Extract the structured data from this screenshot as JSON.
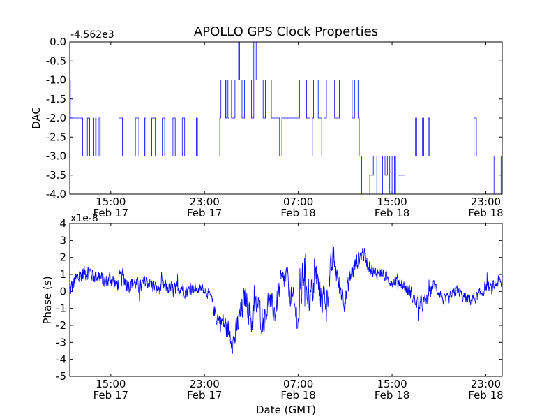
{
  "title": "APOLLO GPS Clock Properties",
  "chart_data": [
    {
      "type": "line",
      "ylabel": "DAC",
      "xlabel": "",
      "offset_label": "-4.562e3",
      "ylim": [
        -4.0,
        0.0
      ],
      "xlim_hours": [
        11.5,
        48.4
      ],
      "yticks": [
        {
          "v": 0.0,
          "label": "0.0"
        },
        {
          "v": -0.5,
          "label": "-0.5"
        },
        {
          "v": -1.0,
          "label": "-1.0"
        },
        {
          "v": -1.5,
          "label": "-1.5"
        },
        {
          "v": -2.0,
          "label": "-2.0"
        },
        {
          "v": -2.5,
          "label": "-2.5"
        },
        {
          "v": -3.0,
          "label": "-3.0"
        },
        {
          "v": -3.5,
          "label": "-3.5"
        },
        {
          "v": -4.0,
          "label": "-4.0"
        }
      ],
      "xticks": [
        {
          "h": 15,
          "time": "15:00",
          "date": "Feb 17"
        },
        {
          "h": 23,
          "time": "23:00",
          "date": "Feb 17"
        },
        {
          "h": 31,
          "time": "07:00",
          "date": "Feb 18"
        },
        {
          "h": 39,
          "time": "15:00",
          "date": "Feb 18"
        },
        {
          "h": 47,
          "time": "23:00",
          "date": "Feb 18"
        }
      ],
      "color": "#0000ff",
      "series_name": "DAC",
      "steps": [
        [
          11.5,
          -1.0
        ],
        [
          11.55,
          -2.0
        ],
        [
          12.6,
          -3.0
        ],
        [
          13.0,
          -2.0
        ],
        [
          13.2,
          -3.0
        ],
        [
          13.5,
          -2.0
        ],
        [
          13.55,
          -3.0
        ],
        [
          13.7,
          -2.0
        ],
        [
          13.75,
          -3.0
        ],
        [
          14.0,
          -2.0
        ],
        [
          14.1,
          -3.0
        ],
        [
          15.7,
          -2.0
        ],
        [
          16.0,
          -3.0
        ],
        [
          17.1,
          -2.0
        ],
        [
          17.4,
          -3.0
        ],
        [
          17.9,
          -2.0
        ],
        [
          18.0,
          -3.0
        ],
        [
          18.5,
          -2.0
        ],
        [
          18.8,
          -3.0
        ],
        [
          19.4,
          -2.0
        ],
        [
          19.6,
          -3.0
        ],
        [
          20.3,
          -2.0
        ],
        [
          20.5,
          -3.0
        ],
        [
          21.1,
          -2.0
        ],
        [
          21.3,
          -3.0
        ],
        [
          22.3,
          -2.0
        ],
        [
          22.4,
          -3.0
        ],
        [
          24.3,
          -2.0
        ],
        [
          24.4,
          -1.0
        ],
        [
          24.8,
          -2.0
        ],
        [
          24.9,
          -1.0
        ],
        [
          25.0,
          -2.0
        ],
        [
          25.1,
          -1.0
        ],
        [
          25.3,
          -2.0
        ],
        [
          25.6,
          -1.0
        ],
        [
          25.9,
          0.0
        ],
        [
          26.0,
          -1.0
        ],
        [
          26.2,
          -2.0
        ],
        [
          26.4,
          -1.0
        ],
        [
          27.0,
          -2.0
        ],
        [
          27.2,
          0.0
        ],
        [
          27.4,
          -1.0
        ],
        [
          28.0,
          -2.0
        ],
        [
          28.2,
          -1.0
        ],
        [
          28.7,
          -2.0
        ],
        [
          29.4,
          -3.0
        ],
        [
          29.6,
          -2.0
        ],
        [
          31.1,
          -1.0
        ],
        [
          31.7,
          -2.0
        ],
        [
          32.0,
          -3.0
        ],
        [
          32.2,
          -2.0
        ],
        [
          32.3,
          -1.0
        ],
        [
          32.7,
          -2.0
        ],
        [
          33.0,
          -3.0
        ],
        [
          33.2,
          -2.0
        ],
        [
          33.4,
          -1.0
        ],
        [
          34.1,
          -2.0
        ],
        [
          34.5,
          -1.0
        ],
        [
          35.6,
          -2.0
        ],
        [
          35.8,
          -1.0
        ],
        [
          36.1,
          -2.0
        ],
        [
          36.2,
          -3.0
        ],
        [
          36.4,
          -4.0
        ],
        [
          37.1,
          -3.5
        ],
        [
          37.4,
          -3.0
        ],
        [
          37.7,
          -4.0
        ],
        [
          38.2,
          -3.0
        ],
        [
          38.4,
          -3.5
        ],
        [
          38.6,
          -3.0
        ],
        [
          38.8,
          -4.0
        ],
        [
          39.0,
          -3.0
        ],
        [
          39.2,
          -4.0
        ],
        [
          39.3,
          -3.0
        ],
        [
          39.5,
          -3.5
        ],
        [
          40.1,
          -3.0
        ],
        [
          41.0,
          -2.0
        ],
        [
          41.1,
          -3.0
        ],
        [
          41.6,
          -2.0
        ],
        [
          41.7,
          -3.0
        ],
        [
          42.1,
          -2.0
        ],
        [
          42.2,
          -3.0
        ],
        [
          46.0,
          -2.0
        ],
        [
          46.2,
          -3.0
        ],
        [
          47.7,
          -4.0
        ],
        [
          48.3,
          -3.0
        ],
        [
          48.4,
          -3.0
        ]
      ]
    },
    {
      "type": "line",
      "ylabel": "Phase (s)",
      "xlabel": "Date (GMT)",
      "offset_label": "x1e-8",
      "ylim": [
        -5,
        4
      ],
      "xlim_hours": [
        11.5,
        48.4
      ],
      "yticks": [
        {
          "v": 4,
          "label": "4"
        },
        {
          "v": 3,
          "label": "3"
        },
        {
          "v": 2,
          "label": "2"
        },
        {
          "v": 1,
          "label": "1"
        },
        {
          "v": 0,
          "label": "0"
        },
        {
          "v": -1,
          "label": "-1"
        },
        {
          "v": -2,
          "label": "-2"
        },
        {
          "v": -3,
          "label": "-3"
        },
        {
          "v": -4,
          "label": "-4"
        },
        {
          "v": -5,
          "label": "-5"
        }
      ],
      "xticks": [
        {
          "h": 15,
          "time": "15:00",
          "date": "Feb 17"
        },
        {
          "h": 23,
          "time": "23:00",
          "date": "Feb 17"
        },
        {
          "h": 31,
          "time": "07:00",
          "date": "Feb 18"
        },
        {
          "h": 39,
          "time": "15:00",
          "date": "Feb 18"
        },
        {
          "h": 47,
          "time": "23:00",
          "date": "Feb 18"
        }
      ],
      "color": "#0000ff",
      "series_name": "Phase",
      "envelope": [
        [
          11.5,
          0.0,
          0.8
        ],
        [
          12.0,
          0.6,
          0.8
        ],
        [
          12.5,
          1.0,
          0.7
        ],
        [
          13.0,
          1.2,
          0.7
        ],
        [
          13.5,
          1.0,
          0.6
        ],
        [
          14.0,
          0.9,
          0.7
        ],
        [
          14.5,
          0.5,
          0.6
        ],
        [
          15.0,
          0.8,
          0.7
        ],
        [
          15.5,
          0.4,
          0.6
        ],
        [
          16.0,
          0.9,
          0.8
        ],
        [
          16.5,
          0.4,
          0.7
        ],
        [
          17.0,
          0.5,
          0.6
        ],
        [
          17.5,
          0.2,
          0.6
        ],
        [
          18.0,
          0.6,
          0.6
        ],
        [
          18.5,
          0.4,
          0.6
        ],
        [
          19.0,
          0.1,
          0.5
        ],
        [
          19.5,
          0.3,
          0.6
        ],
        [
          20.0,
          0.2,
          0.6
        ],
        [
          20.5,
          0.0,
          0.7
        ],
        [
          21.0,
          0.3,
          0.5
        ],
        [
          21.5,
          0.0,
          0.6
        ],
        [
          22.0,
          0.2,
          0.5
        ],
        [
          22.5,
          0.1,
          0.4
        ],
        [
          23.0,
          0.2,
          0.4
        ],
        [
          23.5,
          -0.3,
          0.5
        ],
        [
          24.0,
          -1.5,
          0.7
        ],
        [
          24.5,
          -1.8,
          0.9
        ],
        [
          25.0,
          -2.2,
          1.0
        ],
        [
          25.5,
          -3.0,
          1.0
        ],
        [
          26.0,
          -1.5,
          1.2
        ],
        [
          26.5,
          -0.2,
          1.0
        ],
        [
          27.0,
          -1.8,
          1.2
        ],
        [
          27.5,
          -0.8,
          1.3
        ],
        [
          28.0,
          -1.8,
          1.1
        ],
        [
          28.5,
          -0.5,
          1.0
        ],
        [
          29.0,
          -1.3,
          1.0
        ],
        [
          29.5,
          0.5,
          1.1
        ],
        [
          30.0,
          0.8,
          1.0
        ],
        [
          30.5,
          -0.5,
          1.2
        ],
        [
          31.0,
          -1.8,
          1.1
        ],
        [
          31.5,
          1.5,
          1.8
        ],
        [
          32.0,
          -0.5,
          1.5
        ],
        [
          32.5,
          1.0,
          1.4
        ],
        [
          33.0,
          -0.5,
          1.2
        ],
        [
          33.5,
          0.0,
          1.3
        ],
        [
          34.0,
          2.0,
          1.2
        ],
        [
          34.5,
          0.3,
          1.0
        ],
        [
          35.0,
          -0.5,
          0.9
        ],
        [
          35.5,
          1.0,
          0.8
        ],
        [
          36.0,
          1.8,
          0.8
        ],
        [
          36.5,
          2.3,
          0.6
        ],
        [
          37.0,
          1.6,
          0.6
        ],
        [
          37.5,
          1.0,
          0.6
        ],
        [
          38.0,
          1.2,
          0.5
        ],
        [
          38.5,
          0.8,
          0.5
        ],
        [
          39.0,
          0.6,
          0.5
        ],
        [
          39.5,
          0.7,
          0.5
        ],
        [
          40.0,
          0.3,
          0.5
        ],
        [
          40.5,
          0.0,
          0.6
        ],
        [
          41.0,
          -0.6,
          0.6
        ],
        [
          41.5,
          -0.8,
          0.7
        ],
        [
          42.0,
          -0.5,
          0.6
        ],
        [
          42.5,
          0.4,
          0.5
        ],
        [
          43.0,
          0.0,
          0.5
        ],
        [
          43.5,
          -0.6,
          0.5
        ],
        [
          44.0,
          -0.4,
          0.5
        ],
        [
          44.5,
          0.1,
          0.5
        ],
        [
          45.0,
          -0.3,
          0.5
        ],
        [
          45.5,
          -0.5,
          0.5
        ],
        [
          46.0,
          -0.4,
          0.5
        ],
        [
          46.5,
          -0.2,
          0.5
        ],
        [
          47.0,
          0.3,
          0.5
        ],
        [
          47.5,
          0.1,
          0.5
        ],
        [
          48.0,
          0.6,
          0.6
        ],
        [
          48.4,
          0.4,
          0.5
        ]
      ]
    }
  ]
}
